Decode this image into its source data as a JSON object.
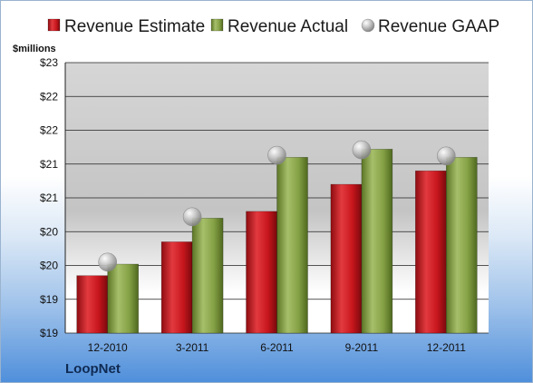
{
  "brand": "LoopNet",
  "chart_data": {
    "type": "bar",
    "unit_label": "$millions",
    "categories": [
      "12-2010",
      "3-2011",
      "6-2011",
      "9-2011",
      "12-2011"
    ],
    "series": [
      {
        "name": "Revenue Estimate",
        "kind": "bar",
        "color": "#c8161d",
        "values": [
          19.85,
          20.35,
          20.8,
          21.2,
          21.4
        ]
      },
      {
        "name": "Revenue Actual",
        "kind": "bar",
        "color": "#7f9c3d",
        "values": [
          20.02,
          20.7,
          21.6,
          21.72,
          21.6
        ]
      },
      {
        "name": "Revenue GAAP",
        "kind": "marker",
        "color": "#b3b3b3",
        "values": [
          20.05,
          20.72,
          21.63,
          21.71,
          21.62
        ]
      }
    ],
    "ytick_labels": [
      "$19",
      "$19",
      "$20",
      "$20",
      "$21",
      "$21",
      "$22",
      "$22",
      "$23"
    ],
    "ylim": [
      19,
      23
    ],
    "grid": true,
    "legend_position": "top"
  }
}
